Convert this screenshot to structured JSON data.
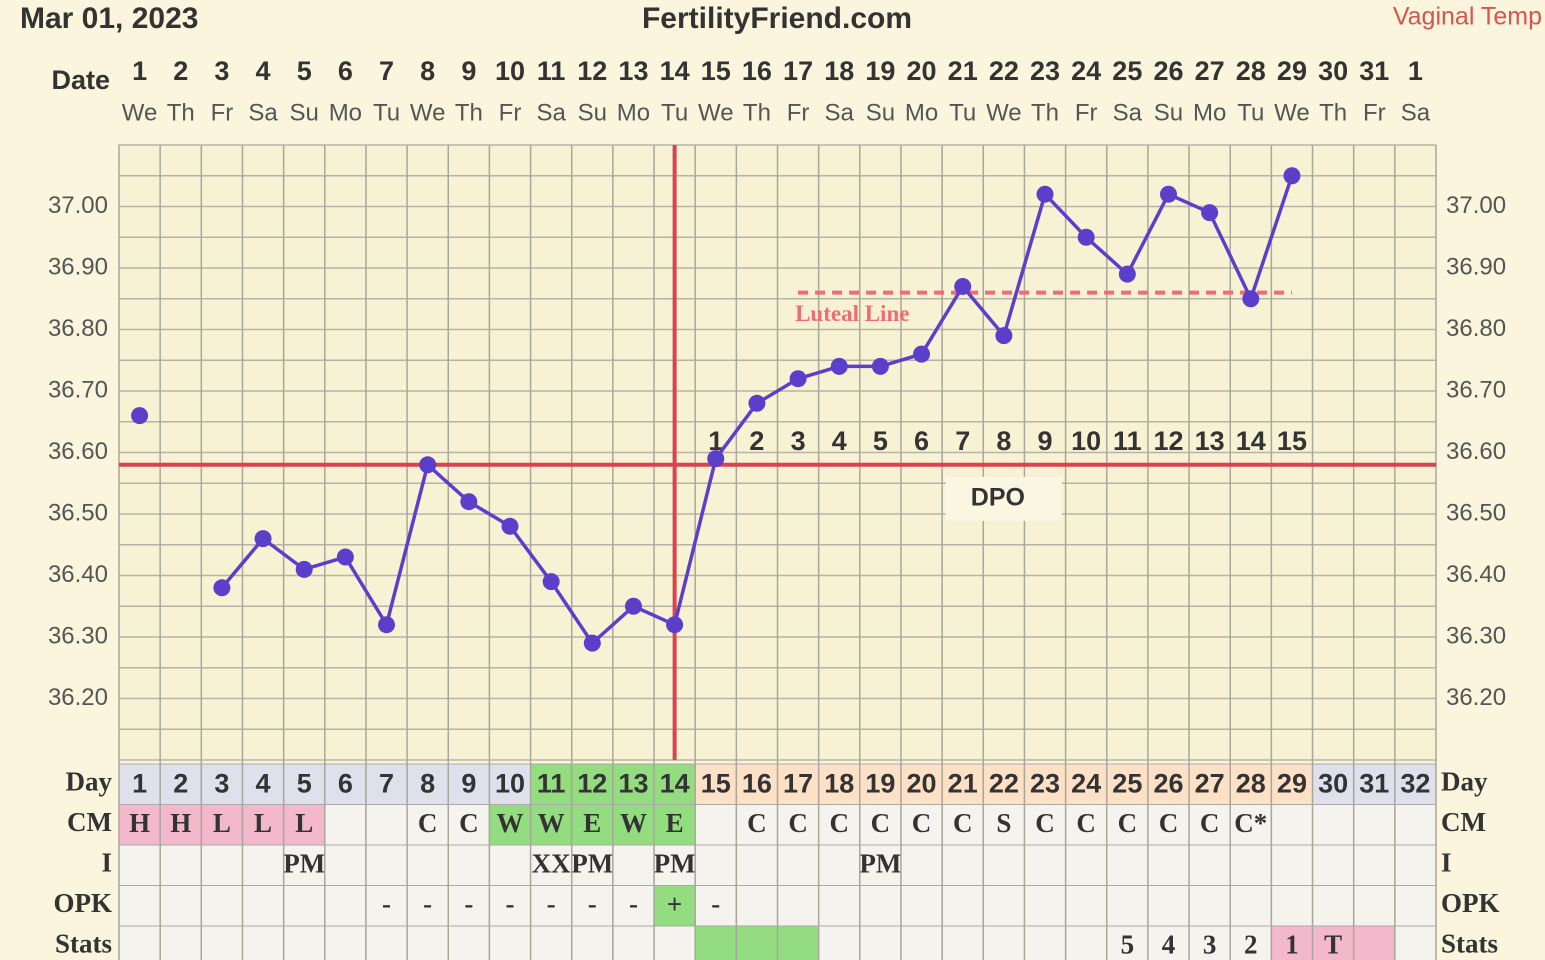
{
  "chart_data": {
    "type": "line",
    "title": "FertilityFriend.com",
    "subtitle": "Mar 01, 2023",
    "annotation": "Vaginal Temp",
    "date_label": "Date",
    "dates": [
      1,
      2,
      3,
      4,
      5,
      6,
      7,
      8,
      9,
      10,
      11,
      12,
      13,
      14,
      15,
      16,
      17,
      18,
      19,
      20,
      21,
      22,
      23,
      24,
      25,
      26,
      27,
      28,
      29,
      30,
      31,
      1
    ],
    "weekdays": [
      "We",
      "Th",
      "Fr",
      "Sa",
      "Su",
      "Mo",
      "Tu",
      "We",
      "Th",
      "Fr",
      "Sa",
      "Su",
      "Mo",
      "Tu",
      "We",
      "Th",
      "Fr",
      "Sa",
      "Su",
      "Mo",
      "Tu",
      "We",
      "Th",
      "Fr",
      "Sa",
      "Su",
      "Mo",
      "Tu",
      "We",
      "Th",
      "Fr",
      "Sa"
    ],
    "day_label": "Day",
    "categories": [
      1,
      2,
      3,
      4,
      5,
      6,
      7,
      8,
      9,
      10,
      11,
      12,
      13,
      14,
      15,
      16,
      17,
      18,
      19,
      20,
      21,
      22,
      23,
      24,
      25,
      26,
      27,
      28,
      29,
      30,
      31,
      32
    ],
    "category_colors": [
      "#dfe0ec",
      "#dfe0ec",
      "#dfe0ec",
      "#dfe0ec",
      "#dfe0ec",
      "#dfe0ec",
      "#dfe0ec",
      "#dfe0ec",
      "#dfe0ec",
      "#dfe0ec",
      "#93dc80",
      "#93dc80",
      "#93dc80",
      "#93dc80",
      "#fde1c6",
      "#fde1c6",
      "#fde1c6",
      "#fde1c6",
      "#fde1c6",
      "#fde1c6",
      "#fde1c6",
      "#fde1c6",
      "#fde1c6",
      "#fde1c6",
      "#fde1c6",
      "#fde1c6",
      "#fde1c6",
      "#fde1c6",
      "#fde1c6",
      "#dfe0ec",
      "#dfe0ec",
      "#dfe0ec"
    ],
    "series": [
      {
        "name": "Temperature",
        "color": "#5b3fcb",
        "values": [
          36.66,
          null,
          36.38,
          36.46,
          36.41,
          36.43,
          36.32,
          36.58,
          36.52,
          36.48,
          36.39,
          36.29,
          36.35,
          36.32,
          36.59,
          36.68,
          36.72,
          36.74,
          36.74,
          36.76,
          36.87,
          36.79,
          37.02,
          36.95,
          36.89,
          37.02,
          36.99,
          36.85,
          37.05,
          null,
          null,
          null
        ]
      }
    ],
    "ylim": [
      36.1,
      37.1
    ],
    "yticks": [
      {
        "value": 36.2,
        "label": "36.20"
      },
      {
        "value": 36.3,
        "label": "36.30"
      },
      {
        "value": 36.4,
        "label": "36.40"
      },
      {
        "value": 36.5,
        "label": "36.50"
      },
      {
        "value": 36.6,
        "label": "36.60"
      },
      {
        "value": 36.7,
        "label": "36.70"
      },
      {
        "value": 36.8,
        "label": "36.80"
      },
      {
        "value": 36.9,
        "label": "36.90"
      },
      {
        "value": 37.0,
        "label": "37.00"
      }
    ],
    "grid": true,
    "coverline": 36.58,
    "ovulation_day": 14,
    "luteal_line": {
      "label": "Luteal Line",
      "value": 36.86,
      "from": 17,
      "to": 29,
      "color": "#f06a78"
    },
    "dpo_label": "DPO",
    "dpo": [
      null,
      null,
      null,
      null,
      null,
      null,
      null,
      null,
      null,
      null,
      null,
      null,
      null,
      null,
      1,
      2,
      3,
      4,
      5,
      6,
      7,
      8,
      9,
      10,
      11,
      12,
      13,
      14,
      15,
      null,
      null,
      null
    ],
    "rows": [
      {
        "label": "CM",
        "values": [
          "H",
          "H",
          "L",
          "L",
          "L",
          null,
          null,
          "C",
          "C",
          "W",
          "W",
          "E",
          "W",
          "E",
          null,
          "C",
          "C",
          "C",
          "C",
          "C",
          "C",
          "S",
          "C",
          "C",
          "C",
          "C",
          "C",
          "C*",
          null,
          null,
          null,
          null
        ],
        "colors": [
          "#f4b8cc",
          "#f4b8cc",
          "#f4b8cc",
          "#f4b8cc",
          "#f4b8cc",
          null,
          null,
          null,
          null,
          "#93dc80",
          "#93dc80",
          "#93dc80",
          "#93dc80",
          "#93dc80",
          null,
          null,
          null,
          null,
          null,
          null,
          null,
          null,
          null,
          null,
          null,
          null,
          null,
          null,
          null,
          null,
          null,
          null
        ]
      },
      {
        "label": "I",
        "values": [
          null,
          null,
          null,
          null,
          "PM",
          null,
          null,
          null,
          null,
          null,
          "XX",
          "PM",
          null,
          "PM",
          null,
          null,
          null,
          null,
          "PM",
          null,
          null,
          null,
          null,
          null,
          null,
          null,
          null,
          null,
          null,
          null,
          null,
          null
        ],
        "colors": [
          null,
          null,
          null,
          null,
          null,
          null,
          null,
          null,
          null,
          null,
          null,
          null,
          null,
          null,
          null,
          null,
          null,
          null,
          null,
          null,
          null,
          null,
          null,
          null,
          null,
          null,
          null,
          null,
          null,
          null,
          null,
          null
        ]
      },
      {
        "label": "OPK",
        "values": [
          null,
          null,
          null,
          null,
          null,
          null,
          "-",
          "-",
          "-",
          "-",
          "-",
          "-",
          "-",
          "+",
          "-",
          null,
          null,
          null,
          null,
          null,
          null,
          null,
          null,
          null,
          null,
          null,
          null,
          null,
          null,
          null,
          null,
          null
        ],
        "colors": [
          null,
          null,
          null,
          null,
          null,
          null,
          null,
          null,
          null,
          null,
          null,
          null,
          null,
          "#93dc80",
          null,
          null,
          null,
          null,
          null,
          null,
          null,
          null,
          null,
          null,
          null,
          null,
          null,
          null,
          null,
          null,
          null,
          null
        ]
      },
      {
        "label": "Stats",
        "values": [
          null,
          null,
          null,
          null,
          null,
          null,
          null,
          null,
          null,
          null,
          null,
          null,
          null,
          null,
          null,
          null,
          null,
          null,
          null,
          null,
          null,
          null,
          null,
          null,
          5,
          4,
          3,
          2,
          1,
          "T",
          null,
          null
        ],
        "colors": [
          null,
          null,
          null,
          null,
          null,
          null,
          null,
          null,
          null,
          null,
          null,
          null,
          null,
          null,
          "#93dc80",
          "#93dc80",
          "#93dc80",
          null,
          null,
          null,
          null,
          null,
          null,
          null,
          null,
          null,
          null,
          null,
          "#f4b8cc",
          "#f4b8cc",
          "#f4b8cc",
          null
        ]
      }
    ]
  }
}
